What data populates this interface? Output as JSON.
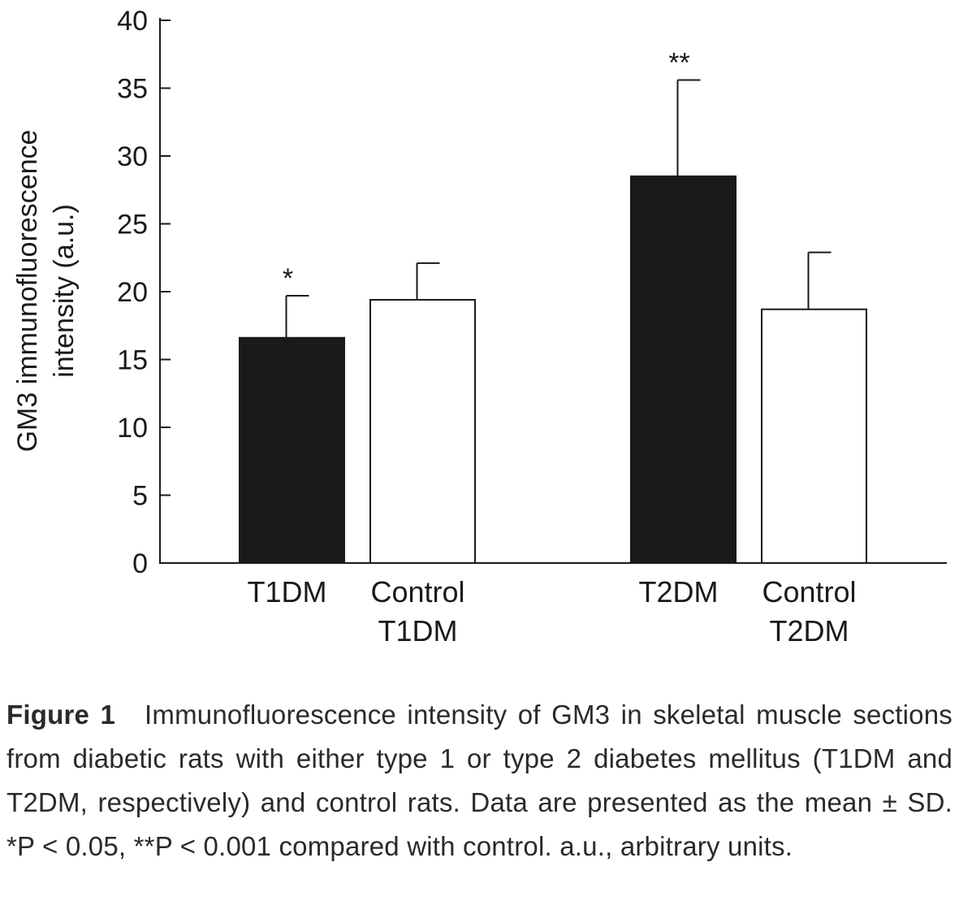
{
  "chart_data": {
    "type": "bar",
    "ylabel_line1": "GM3 immunofluorescence",
    "ylabel_line2": "intensity (a.u.)",
    "ylim": [
      0,
      40
    ],
    "yticks": [
      0,
      5,
      10,
      15,
      20,
      25,
      30,
      35,
      40
    ],
    "grid": false,
    "bars": [
      {
        "label_lines": [
          "T1DM"
        ],
        "value": 16.6,
        "error": 3.1,
        "fill": "#1a1a1a",
        "annotation": "*"
      },
      {
        "label_lines": [
          "Control",
          "T1DM"
        ],
        "value": 19.4,
        "error": 2.7,
        "fill": "#ffffff",
        "annotation": ""
      },
      {
        "label_lines": [
          "T2DM"
        ],
        "value": 28.5,
        "error": 7.1,
        "fill": "#1a1a1a",
        "annotation": "**"
      },
      {
        "label_lines": [
          "Control",
          "T2DM"
        ],
        "value": 18.7,
        "error": 4.2,
        "fill": "#ffffff",
        "annotation": ""
      }
    ]
  },
  "caption": {
    "figure_label": "Figure 1",
    "text": "Immunofluorescence intensity of GM3 in skeletal muscle sections from diabetic rats with either type 1 or type 2 diabetes mellitus (T1DM and T2DM, respectively) and control rats. Data are presented as the mean ± SD. *P < 0.05, **P < 0.001 compared with control. a.u., arbitrary units."
  },
  "colors": {
    "ink": "#1a1a1a",
    "background": "#ffffff"
  }
}
